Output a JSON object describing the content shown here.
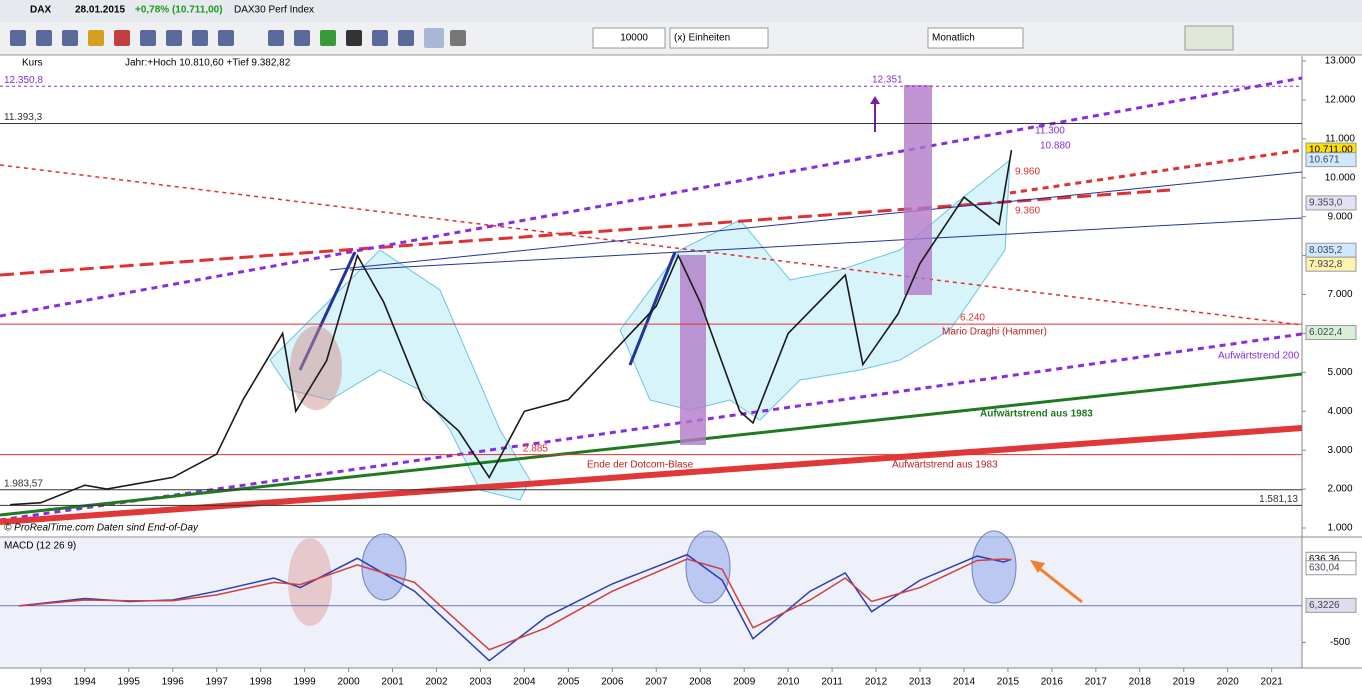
{
  "toolbar": {
    "symbol": "DAX",
    "date": "28.01.2015",
    "change": "+0,78% (10.711,00)",
    "name": "DAX30 Perf Index",
    "quantity": "10000",
    "units": "(x) Einheiten",
    "period": "Monatlich"
  },
  "chart_data": [
    {
      "type": "line",
      "title": "Kurs",
      "subtitle": "Jahr:+Hoch 10.810,60 +Tief 9.382,82",
      "footer": "© ProRealTime.com Daten sind End-of-Day",
      "x": [
        1992.3,
        1993,
        1994,
        1994.5,
        1995,
        1996,
        1997,
        1997.6,
        1998.5,
        1998.8,
        1999.5,
        2000.2,
        2000.8,
        2001.7,
        2002.5,
        2003.2,
        2004,
        2005,
        2006,
        2007,
        2007.5,
        2008,
        2008.9,
        2009.2,
        2010,
        2011.3,
        2011.7,
        2012.5,
        2013,
        2014,
        2014.8,
        2015.08
      ],
      "series": [
        {
          "name": "DAX",
          "color": "#1a1a1a",
          "values": [
            1600,
            1650,
            2100,
            2000,
            2100,
            2300,
            2900,
            4300,
            6000,
            4000,
            5300,
            8000,
            6800,
            4300,
            3500,
            2300,
            4000,
            4300,
            5500,
            6700,
            8000,
            6800,
            4000,
            3700,
            6000,
            7500,
            5200,
            6500,
            7800,
            9500,
            8800,
            10711
          ]
        }
      ],
      "xlim": [
        1992.07,
        2021.69
      ],
      "xticks": [
        1993,
        1994,
        1995,
        1996,
        1997,
        1998,
        1999,
        2000,
        2001,
        2002,
        2003,
        2004,
        2005,
        2006,
        2007,
        2008,
        2009,
        2010,
        2011,
        2012,
        2013,
        2014,
        2015,
        2016,
        2017,
        2018,
        2019,
        2020,
        2021
      ],
      "ylim": [
        1000,
        13000
      ],
      "yticks": [
        {
          "value": 1000,
          "label": "1.000"
        },
        {
          "value": 2000,
          "label": "2.000"
        },
        {
          "value": 3000,
          "label": "3.000"
        },
        {
          "value": 4000,
          "label": "4.000"
        },
        {
          "value": 5000,
          "label": "5.000"
        },
        {
          "value": 6000,
          "label": "6.000"
        },
        {
          "value": 7000,
          "label": "7.000"
        },
        {
          "value": 8000,
          "label": "8.000"
        },
        {
          "value": 9000,
          "label": "9.000"
        },
        {
          "value": 10000,
          "label": "10.000"
        },
        {
          "value": 11000,
          "label": "11.000"
        },
        {
          "value": 12000,
          "label": "12.000"
        },
        {
          "value": 13000,
          "label": "13.000"
        }
      ],
      "levels": [
        {
          "value": 12350.8,
          "label": "12.350,8"
        },
        {
          "value": 11393.3,
          "label": "11.393,3"
        },
        {
          "value": 1983.57,
          "label": "1.983,57"
        },
        {
          "value": 1581.13,
          "label": "1.581,13"
        },
        {
          "value": 6240,
          "label": "6.240"
        },
        {
          "value": 2885,
          "label": "2.885"
        }
      ],
      "price_labels": [
        {
          "value": 10711,
          "label": "10.711,00"
        },
        {
          "value": 10671,
          "label": "10.671"
        },
        {
          "value": 9353,
          "label": "9.353,0"
        },
        {
          "value": 8035.2,
          "label": "8.035,2"
        },
        {
          "value": 7932.8,
          "label": "7.932,8"
        },
        {
          "value": 6022.4,
          "label": "6.022,4"
        }
      ],
      "annotations": [
        "12.351",
        "11.300",
        "10.880",
        "9.960",
        "9.360",
        "Mario Draghi (Hammer)",
        "Aufwärtstrend 200",
        "Aufwärtstrend aus 1983",
        "Ende der Dotcom-Blase",
        "Aufwärtstrend aus 1983"
      ]
    },
    {
      "type": "line",
      "title": "MACD (12 26 9)",
      "x": [
        1992.5,
        1994,
        1995,
        1996,
        1997,
        1998.3,
        1998.9,
        2000.2,
        2001.5,
        2003.2,
        2004.5,
        2006,
        2007.7,
        2008.5,
        2009.2,
        2010.5,
        2011.3,
        2011.9,
        2013,
        2014.3,
        2014.9,
        2015.08
      ],
      "series": [
        {
          "name": "MACD",
          "color": "#2b3fb0",
          "values": [
            0,
            100,
            60,
            80,
            200,
            380,
            250,
            650,
            200,
            -750,
            -150,
            300,
            700,
            350,
            -450,
            200,
            450,
            -80,
            350,
            680,
            600,
            636
          ]
        },
        {
          "name": "Signal",
          "color": "#d04040",
          "values": [
            0,
            80,
            70,
            70,
            150,
            320,
            290,
            560,
            320,
            -600,
            -300,
            200,
            640,
            500,
            -300,
            80,
            380,
            60,
            250,
            620,
            640,
            630
          ]
        }
      ],
      "ylim": [
        -850,
        900
      ],
      "yticks": [
        -500
      ],
      "price_labels": [
        {
          "value": 636.36,
          "label": "636,36"
        },
        {
          "value": 630.04,
          "label": "630,04"
        },
        {
          "value": 6.3226,
          "label": "6,3226"
        }
      ]
    }
  ]
}
